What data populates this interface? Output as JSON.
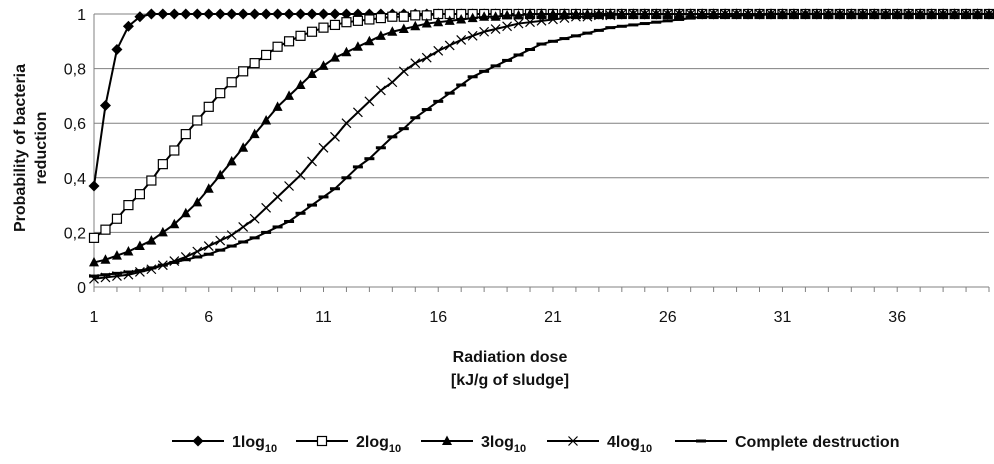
{
  "chart_data": {
    "type": "line",
    "xlabel_lines": [
      "Radiation dose",
      "[kJ/g of sludge]"
    ],
    "ylabel_lines": [
      "Probability of bacteria",
      "reduction"
    ],
    "x_ticks": [
      "1",
      "6",
      "11",
      "16",
      "21",
      "26",
      "31",
      "36"
    ],
    "y_ticks": [
      "0",
      "0,2",
      "0,4",
      "0,6",
      "0,8",
      "1"
    ],
    "xlim": [
      1,
      40
    ],
    "ylim": [
      0,
      1
    ],
    "grid": "horizontal",
    "legend_position": "bottom",
    "series": [
      {
        "name": "1log",
        "name_subscript": "10",
        "marker": "filled-diamond",
        "x": [
          1,
          1.5,
          2,
          2.5,
          3,
          3.5,
          4,
          4.5,
          5,
          5.5,
          6,
          6.5,
          7,
          7.5,
          8,
          8.5,
          9,
          9.5,
          10,
          10.5,
          11,
          11.5,
          12,
          12.5,
          13,
          13.5,
          14,
          14.5,
          15,
          15.5,
          16,
          16.5,
          17,
          17.5,
          18,
          18.5,
          19,
          19.5,
          20,
          20.5,
          21,
          21.5,
          22,
          22.5,
          23,
          23.5,
          24,
          24.5,
          25,
          25.5,
          26,
          26.5,
          27,
          27.5,
          28,
          28.5,
          29,
          29.5,
          30,
          30.5,
          31,
          31.5,
          32,
          32.5,
          33,
          33.5,
          34,
          34.5,
          35,
          35.5,
          36,
          36.5,
          37,
          37.5,
          38,
          38.5,
          39,
          39.5,
          40
        ],
        "y": [
          0.37,
          0.665,
          0.87,
          0.955,
          0.99,
          1,
          1,
          1,
          1,
          1,
          1,
          1,
          1,
          1,
          1,
          1,
          1,
          1,
          1,
          1,
          1,
          1,
          1,
          1,
          1,
          1,
          1,
          1,
          1,
          1,
          1,
          1,
          1,
          1,
          1,
          1,
          1,
          1,
          1,
          1,
          1,
          1,
          1,
          1,
          1,
          1,
          1,
          1,
          1,
          1,
          1,
          1,
          1,
          1,
          1,
          1,
          1,
          1,
          1,
          1,
          1,
          1,
          1,
          1,
          1,
          1,
          1,
          1,
          1,
          1,
          1,
          1,
          1,
          1,
          1,
          1,
          1,
          1,
          1
        ]
      },
      {
        "name": "2log",
        "name_subscript": "10",
        "marker": "open-square",
        "x": [
          1,
          1.5,
          2,
          2.5,
          3,
          3.5,
          4,
          4.5,
          5,
          5.5,
          6,
          6.5,
          7,
          7.5,
          8,
          8.5,
          9,
          9.5,
          10,
          10.5,
          11,
          11.5,
          12,
          12.5,
          13,
          13.5,
          14,
          14.5,
          15,
          15.5,
          16,
          16.5,
          17,
          17.5,
          18,
          18.5,
          19,
          19.5,
          20,
          20.5,
          21,
          21.5,
          22,
          22.5,
          23,
          23.5,
          24,
          24.5,
          25,
          25.5,
          26,
          26.5,
          27,
          27.5,
          28,
          28.5,
          29,
          29.5,
          30,
          30.5,
          31,
          31.5,
          32,
          32.5,
          33,
          33.5,
          34,
          34.5,
          35,
          35.5,
          36,
          36.5,
          37,
          37.5,
          38,
          38.5,
          39,
          39.5,
          40
        ],
        "y": [
          0.18,
          0.21,
          0.25,
          0.3,
          0.34,
          0.39,
          0.45,
          0.5,
          0.56,
          0.61,
          0.66,
          0.71,
          0.75,
          0.79,
          0.82,
          0.85,
          0.88,
          0.9,
          0.92,
          0.935,
          0.95,
          0.96,
          0.97,
          0.975,
          0.98,
          0.985,
          0.99,
          0.99,
          0.995,
          0.995,
          1,
          1,
          1,
          1,
          1,
          1,
          1,
          1,
          1,
          1,
          1,
          1,
          1,
          1,
          1,
          1,
          1,
          1,
          1,
          1,
          1,
          1,
          1,
          1,
          1,
          1,
          1,
          1,
          1,
          1,
          1,
          1,
          1,
          1,
          1,
          1,
          1,
          1,
          1,
          1,
          1,
          1,
          1,
          1,
          1,
          1,
          1,
          1,
          1
        ]
      },
      {
        "name": "3log",
        "name_subscript": "10",
        "marker": "filled-triangle",
        "x": [
          1,
          1.5,
          2,
          2.5,
          3,
          3.5,
          4,
          4.5,
          5,
          5.5,
          6,
          6.5,
          7,
          7.5,
          8,
          8.5,
          9,
          9.5,
          10,
          10.5,
          11,
          11.5,
          12,
          12.5,
          13,
          13.5,
          14,
          14.5,
          15,
          15.5,
          16,
          16.5,
          17,
          17.5,
          18,
          18.5,
          19,
          19.5,
          20,
          20.5,
          21,
          21.5,
          22,
          22.5,
          23,
          23.5,
          24,
          24.5,
          25,
          25.5,
          26,
          26.5,
          27,
          27.5,
          28,
          28.5,
          29,
          29.5,
          30,
          30.5,
          31,
          31.5,
          32,
          32.5,
          33,
          33.5,
          34,
          34.5,
          35,
          35.5,
          36,
          36.5,
          37,
          37.5,
          38,
          38.5,
          39,
          39.5,
          40
        ],
        "y": [
          0.09,
          0.1,
          0.115,
          0.13,
          0.15,
          0.17,
          0.2,
          0.23,
          0.27,
          0.31,
          0.36,
          0.41,
          0.46,
          0.51,
          0.56,
          0.61,
          0.66,
          0.7,
          0.74,
          0.78,
          0.81,
          0.84,
          0.86,
          0.88,
          0.9,
          0.92,
          0.935,
          0.945,
          0.955,
          0.965,
          0.97,
          0.975,
          0.98,
          0.985,
          0.99,
          0.99,
          0.995,
          0.995,
          1,
          1,
          1,
          1,
          1,
          1,
          1,
          1,
          1,
          1,
          1,
          1,
          1,
          1,
          1,
          1,
          1,
          1,
          1,
          1,
          1,
          1,
          1,
          1,
          1,
          1,
          1,
          1,
          1,
          1,
          1,
          1,
          1,
          1,
          1,
          1,
          1,
          1,
          1,
          1,
          1
        ]
      },
      {
        "name": "4log",
        "name_subscript": "10",
        "marker": "x-cross",
        "x": [
          1,
          1.5,
          2,
          2.5,
          3,
          3.5,
          4,
          4.5,
          5,
          5.5,
          6,
          6.5,
          7,
          7.5,
          8,
          8.5,
          9,
          9.5,
          10,
          10.5,
          11,
          11.5,
          12,
          12.5,
          13,
          13.5,
          14,
          14.5,
          15,
          15.5,
          16,
          16.5,
          17,
          17.5,
          18,
          18.5,
          19,
          19.5,
          20,
          20.5,
          21,
          21.5,
          22,
          22.5,
          23,
          23.5,
          24,
          24.5,
          25,
          25.5,
          26,
          26.5,
          27,
          27.5,
          28,
          28.5,
          29,
          29.5,
          30,
          30.5,
          31,
          31.5,
          32,
          32.5,
          33,
          33.5,
          34,
          34.5,
          35,
          35.5,
          36,
          36.5,
          37,
          37.5,
          38,
          38.5,
          39,
          39.5,
          40
        ],
        "y": [
          0.03,
          0.035,
          0.04,
          0.045,
          0.055,
          0.065,
          0.08,
          0.095,
          0.11,
          0.13,
          0.15,
          0.17,
          0.19,
          0.22,
          0.25,
          0.29,
          0.33,
          0.37,
          0.41,
          0.46,
          0.51,
          0.55,
          0.6,
          0.64,
          0.68,
          0.72,
          0.75,
          0.79,
          0.82,
          0.84,
          0.865,
          0.885,
          0.905,
          0.92,
          0.935,
          0.945,
          0.955,
          0.965,
          0.97,
          0.975,
          0.98,
          0.985,
          0.99,
          0.99,
          0.995,
          0.995,
          1,
          1,
          1,
          1,
          1,
          1,
          1,
          1,
          1,
          1,
          1,
          1,
          1,
          1,
          1,
          1,
          1,
          1,
          1,
          1,
          1,
          1,
          1,
          1,
          1,
          1,
          1,
          1,
          1,
          1,
          1,
          1,
          1
        ]
      },
      {
        "name": "Complete destruction",
        "marker": "dash",
        "x": [
          1,
          1.5,
          2,
          2.5,
          3,
          3.5,
          4,
          4.5,
          5,
          5.5,
          6,
          6.5,
          7,
          7.5,
          8,
          8.5,
          9,
          9.5,
          10,
          10.5,
          11,
          11.5,
          12,
          12.5,
          13,
          13.5,
          14,
          14.5,
          15,
          15.5,
          16,
          16.5,
          17,
          17.5,
          18,
          18.5,
          19,
          19.5,
          20,
          20.5,
          21,
          21.5,
          22,
          22.5,
          23,
          23.5,
          24,
          24.5,
          25,
          25.5,
          26,
          26.5,
          27,
          27.5,
          28,
          28.5,
          29,
          29.5,
          30,
          30.5,
          31,
          31.5,
          32,
          32.5,
          33,
          33.5,
          34,
          34.5,
          35,
          35.5,
          36,
          36.5,
          37,
          37.5,
          38,
          38.5,
          39,
          39.5,
          40
        ],
        "y": [
          0.04,
          0.045,
          0.05,
          0.055,
          0.06,
          0.07,
          0.08,
          0.09,
          0.1,
          0.11,
          0.12,
          0.135,
          0.15,
          0.165,
          0.18,
          0.2,
          0.22,
          0.24,
          0.27,
          0.3,
          0.33,
          0.36,
          0.4,
          0.44,
          0.47,
          0.51,
          0.55,
          0.58,
          0.62,
          0.65,
          0.68,
          0.71,
          0.74,
          0.77,
          0.79,
          0.81,
          0.83,
          0.85,
          0.87,
          0.89,
          0.9,
          0.91,
          0.92,
          0.93,
          0.94,
          0.95,
          0.955,
          0.96,
          0.965,
          0.97,
          0.975,
          0.98,
          0.985,
          0.99,
          0.99,
          0.99,
          0.995,
          0.995,
          0.995,
          1,
          1,
          1,
          1,
          1,
          1,
          1,
          1,
          1,
          1,
          1,
          1,
          1,
          1,
          1,
          1,
          1,
          1,
          1,
          1
        ]
      }
    ]
  }
}
